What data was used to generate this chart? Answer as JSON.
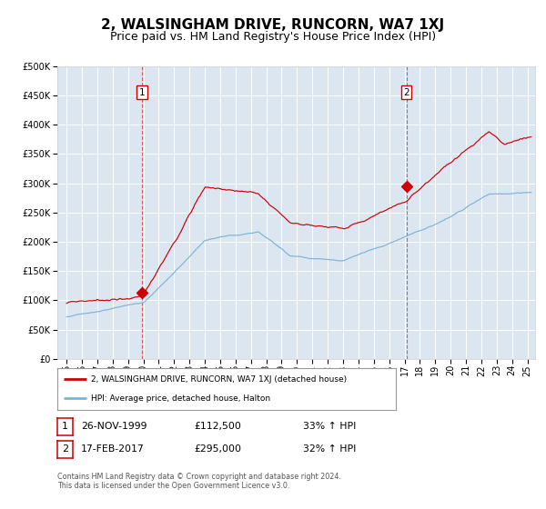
{
  "title": "2, WALSINGHAM DRIVE, RUNCORN, WA7 1XJ",
  "subtitle": "Price paid vs. HM Land Registry's House Price Index (HPI)",
  "ylim": [
    0,
    500000
  ],
  "yticks": [
    0,
    50000,
    100000,
    150000,
    200000,
    250000,
    300000,
    350000,
    400000,
    450000,
    500000
  ],
  "background_color": "#dce6f1",
  "red_line_color": "#cc0000",
  "blue_line_color": "#7fb3d3",
  "sale1_date": "26-NOV-1999",
  "sale1_price": 112500,
  "sale1_year": 1999.9,
  "sale1_label": "1",
  "sale2_date": "17-FEB-2017",
  "sale2_price": 295000,
  "sale2_year": 2017.12,
  "sale2_label": "2",
  "sale1_hpi_pct": "33% ↑ HPI",
  "sale2_hpi_pct": "32% ↑ HPI",
  "legend_red": "2, WALSINGHAM DRIVE, RUNCORN, WA7 1XJ (detached house)",
  "legend_blue": "HPI: Average price, detached house, Halton",
  "footer": "Contains HM Land Registry data © Crown copyright and database right 2024.\nThis data is licensed under the Open Government Licence v3.0.",
  "title_fontsize": 11,
  "subtitle_fontsize": 9,
  "tick_fontsize": 7
}
